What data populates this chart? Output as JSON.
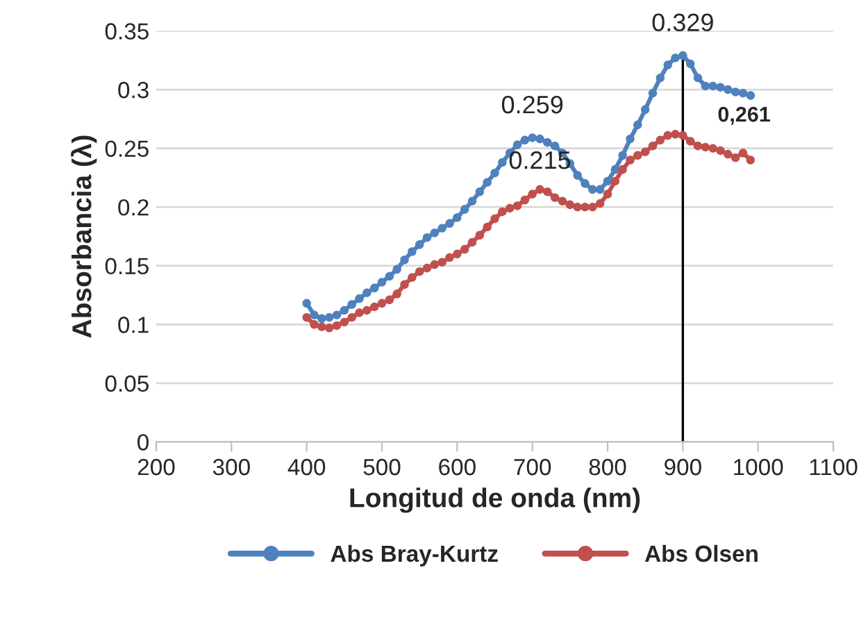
{
  "chart_data": {
    "type": "line",
    "xlabel": "Longitud de onda (nm)",
    "ylabel": "Absorbancia (λ)",
    "x": [
      400,
      410,
      420,
      430,
      440,
      450,
      460,
      470,
      480,
      490,
      500,
      510,
      520,
      530,
      540,
      550,
      560,
      570,
      580,
      590,
      600,
      610,
      620,
      630,
      640,
      650,
      660,
      670,
      680,
      690,
      700,
      710,
      720,
      730,
      740,
      750,
      760,
      770,
      780,
      790,
      800,
      810,
      820,
      830,
      840,
      850,
      860,
      870,
      880,
      890,
      900,
      910,
      920,
      930,
      940,
      950,
      960,
      970,
      980,
      990
    ],
    "series": [
      {
        "name": "Abs Bray-Kurtz",
        "color": "#4f81bd",
        "values": [
          0.118,
          0.108,
          0.105,
          0.106,
          0.108,
          0.112,
          0.117,
          0.122,
          0.127,
          0.131,
          0.136,
          0.141,
          0.147,
          0.155,
          0.162,
          0.168,
          0.174,
          0.178,
          0.182,
          0.186,
          0.191,
          0.198,
          0.205,
          0.213,
          0.221,
          0.229,
          0.238,
          0.246,
          0.253,
          0.257,
          0.259,
          0.258,
          0.255,
          0.252,
          0.246,
          0.237,
          0.227,
          0.22,
          0.215,
          0.215,
          0.222,
          0.232,
          0.244,
          0.258,
          0.27,
          0.283,
          0.297,
          0.31,
          0.321,
          0.327,
          0.329,
          0.322,
          0.31,
          0.303,
          0.303,
          0.302,
          0.3,
          0.298,
          0.297,
          0.295
        ]
      },
      {
        "name": "Abs Olsen",
        "color": "#c0504d",
        "values": [
          0.106,
          0.1,
          0.098,
          0.097,
          0.099,
          0.102,
          0.106,
          0.11,
          0.112,
          0.115,
          0.118,
          0.121,
          0.126,
          0.134,
          0.14,
          0.145,
          0.148,
          0.151,
          0.153,
          0.157,
          0.16,
          0.164,
          0.17,
          0.176,
          0.183,
          0.19,
          0.196,
          0.199,
          0.201,
          0.206,
          0.211,
          0.215,
          0.213,
          0.208,
          0.205,
          0.202,
          0.2,
          0.2,
          0.2,
          0.203,
          0.211,
          0.222,
          0.232,
          0.24,
          0.244,
          0.247,
          0.252,
          0.257,
          0.261,
          0.262,
          0.261,
          0.256,
          0.252,
          0.251,
          0.25,
          0.248,
          0.245,
          0.242,
          0.246,
          0.24
        ]
      }
    ],
    "annotations": [
      {
        "text": "0.259",
        "x": 700,
        "y": 0.259
      },
      {
        "text": "0.215",
        "x": 710,
        "y": 0.215
      },
      {
        "text": "0.329",
        "x": 900,
        "y": 0.329
      },
      {
        "text": "0,261",
        "x": 900,
        "y": 0.261
      }
    ],
    "ref_lines": [
      {
        "axis": "x",
        "value": 900,
        "color": "#000000"
      }
    ],
    "xlim": [
      200,
      1100
    ],
    "xticks": [
      200,
      300,
      400,
      500,
      600,
      700,
      800,
      900,
      1000,
      1100
    ],
    "ylim": [
      0,
      0.35
    ],
    "yticks": [
      0,
      0.05,
      0.1,
      0.15,
      0.2,
      0.25,
      0.3,
      0.35
    ],
    "grid": "y",
    "legend": "bottom",
    "marker": "circle",
    "line_style": "solid"
  }
}
